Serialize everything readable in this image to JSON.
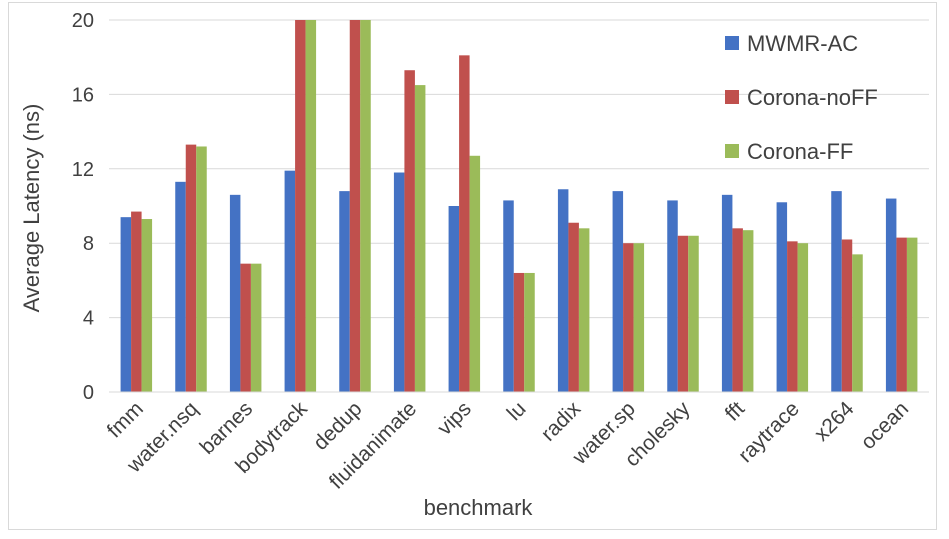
{
  "chart_data": {
    "type": "bar",
    "title": "",
    "xlabel": "benchmark",
    "ylabel": "Average Latency (ns)",
    "ylim": [
      0,
      20
    ],
    "yticks": [
      0,
      4,
      8,
      12,
      16,
      20
    ],
    "grid": true,
    "legend_position": "top-right",
    "categories": [
      "fmm",
      "water.nsq",
      "barnes",
      "bodytrack",
      "dedup",
      "fluidanimate",
      "vips",
      "lu",
      "radix",
      "water.sp",
      "cholesky",
      "fft",
      "raytrace",
      "x264",
      "ocean"
    ],
    "series": [
      {
        "name": "MWMR-AC",
        "color": "#4472c4",
        "values": [
          9.4,
          11.3,
          10.6,
          11.9,
          10.8,
          11.8,
          10.0,
          10.3,
          10.9,
          10.8,
          10.3,
          10.6,
          10.2,
          10.8,
          10.4
        ]
      },
      {
        "name": "Corona-noFF",
        "color": "#c0504d",
        "values": [
          9.7,
          13.3,
          6.9,
          20,
          20,
          17.3,
          18.1,
          6.4,
          9.1,
          8.0,
          8.4,
          8.8,
          8.1,
          8.2,
          8.3
        ]
      },
      {
        "name": "Corona-FF",
        "color": "#9bbb59",
        "values": [
          9.3,
          13.2,
          6.9,
          20,
          20,
          16.5,
          12.7,
          6.4,
          8.8,
          8.0,
          8.4,
          8.7,
          8.0,
          7.4,
          8.3
        ]
      }
    ]
  }
}
